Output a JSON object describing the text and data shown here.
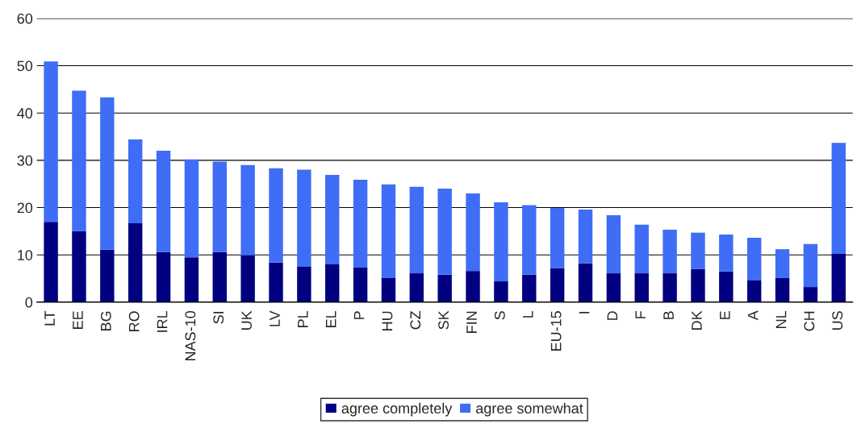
{
  "chart_data": {
    "type": "bar",
    "stacked": true,
    "categories": [
      "LT",
      "EE",
      "BG",
      "RO",
      "IRL",
      "NAS-10",
      "SI",
      "UK",
      "LV",
      "PL",
      "EL",
      "P",
      "HU",
      "CZ",
      "SK",
      "FIN",
      "S",
      "L",
      "EU-15",
      "I",
      "D",
      "F",
      "B",
      "DK",
      "E",
      "A",
      "NL",
      "CH",
      "US"
    ],
    "series": [
      {
        "name": "agree completely",
        "color": "#000080",
        "values": [
          17.0,
          15.0,
          11.1,
          16.7,
          10.6,
          9.5,
          10.6,
          9.9,
          8.4,
          7.5,
          8.0,
          7.3,
          5.1,
          6.1,
          5.8,
          6.6,
          4.4,
          5.8,
          7.2,
          8.2,
          6.1,
          6.1,
          6.1,
          7.0,
          6.5,
          4.6,
          5.1,
          3.2,
          10.2
        ]
      },
      {
        "name": "agree somewhat",
        "color": "#3f6df6",
        "values": [
          33.9,
          29.7,
          32.2,
          17.7,
          21.4,
          20.7,
          19.1,
          19.1,
          19.9,
          20.5,
          18.9,
          18.6,
          19.8,
          18.3,
          18.2,
          16.4,
          16.7,
          14.7,
          12.7,
          11.4,
          12.3,
          10.3,
          9.2,
          7.7,
          7.8,
          9.0,
          6.1,
          9.1,
          23.5
        ]
      }
    ],
    "ylim": [
      0,
      60
    ],
    "yticks": [
      0,
      10,
      20,
      30,
      40,
      50,
      60
    ],
    "grid": "y",
    "legend": "bottom"
  }
}
